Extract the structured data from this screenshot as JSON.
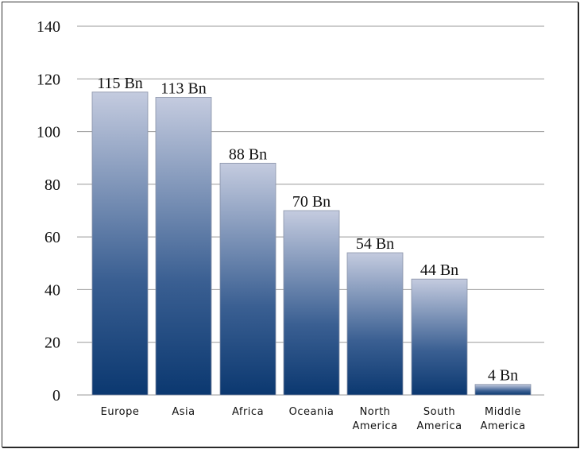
{
  "chart_data": {
    "type": "bar",
    "categories": [
      [
        "Europe"
      ],
      [
        "Asia"
      ],
      [
        "Africa"
      ],
      [
        "Oceania"
      ],
      [
        "North",
        "America"
      ],
      [
        "South",
        "America"
      ],
      [
        "Middle",
        "America"
      ]
    ],
    "values": [
      115,
      113,
      88,
      70,
      54,
      44,
      4
    ],
    "data_labels": [
      "115 Bn",
      "113 Bn",
      "88 Bn",
      "70 Bn",
      "54 Bn",
      "44 Bn",
      "4 Bn"
    ],
    "yticks": [
      "0",
      "20",
      "40",
      "60",
      "80",
      "100",
      "120",
      "140"
    ],
    "ylim": [
      0,
      140
    ],
    "grid": true,
    "colors": {
      "bar_top": "#c4cbdf",
      "bar_mid": "#3a5f92",
      "bar_bottom": "#0b3870",
      "grid": "#999999"
    }
  }
}
